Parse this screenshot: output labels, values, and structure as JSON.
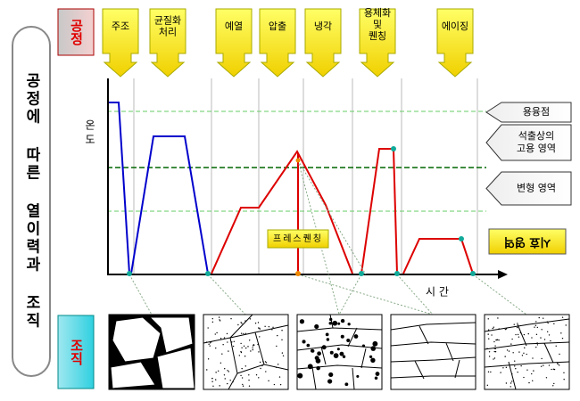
{
  "side_title": "공정에 따른 열이력과 조직",
  "row_labels": {
    "process": "공정",
    "structure": "조직"
  },
  "steps": [
    {
      "lines": [
        "주조"
      ]
    },
    {
      "lines": [
        "균질화",
        "처리"
      ]
    },
    {
      "lines": [
        "예열"
      ]
    },
    {
      "lines": [
        "압출"
      ]
    },
    {
      "lines": [
        "냉각"
      ]
    },
    {
      "lines": [
        "용체화",
        "및",
        "퀜칭"
      ]
    },
    {
      "lines": [
        "에이징"
      ]
    }
  ],
  "axis": {
    "y_label": "온 도",
    "x_label": "시 간"
  },
  "zones": [
    {
      "lines": [
        "용융점"
      ]
    },
    {
      "lines": [
        "석출상의",
        "고용 영역"
      ]
    },
    {
      "lines": [
        "변형 영역"
      ]
    },
    {
      "lines": [
        "시효 영역"
      ]
    }
  ],
  "annotation": "프레스퀜칭"
}
